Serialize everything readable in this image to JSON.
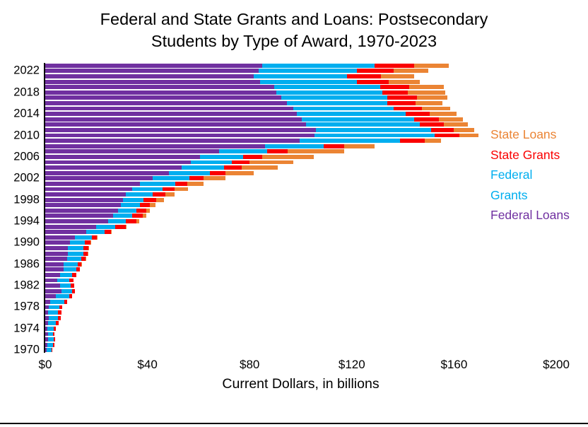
{
  "title": {
    "line1": "Federal and State Grants and Loans: Postsecondary",
    "line2": "Students by Type of Award, 1970-2023"
  },
  "chart_data": {
    "type": "bar",
    "orientation": "horizontal",
    "stacked": true,
    "title": "Federal and State Grants and Loans: Postsecondary Students by Type of Award, 1970-2023",
    "xlabel": "Current Dollars, in billions",
    "ylabel": "",
    "xlim": [
      0,
      200
    ],
    "x_ticks": [
      "$0",
      "$40",
      "$80",
      "$120",
      "$160",
      "$200"
    ],
    "x_tick_values": [
      0,
      40,
      80,
      120,
      160,
      200
    ],
    "y_tick_labels": [
      "2022",
      "2018",
      "2014",
      "2010",
      "2006",
      "2002",
      "1998",
      "1994",
      "1990",
      "1986",
      "1982",
      "1978",
      "1974",
      "1970"
    ],
    "grid": false,
    "legend_position": "right",
    "units": "billions of current dollars",
    "years": [
      1970,
      1971,
      1972,
      1973,
      1974,
      1975,
      1976,
      1977,
      1978,
      1979,
      1980,
      1981,
      1982,
      1983,
      1984,
      1985,
      1986,
      1987,
      1988,
      1989,
      1990,
      1991,
      1992,
      1993,
      1994,
      1995,
      1996,
      1997,
      1998,
      1999,
      2000,
      2001,
      2002,
      2003,
      2004,
      2005,
      2006,
      2007,
      2008,
      2009,
      2010,
      2011,
      2012,
      2013,
      2014,
      2015,
      2016,
      2017,
      2018,
      2019,
      2020,
      2021,
      2022,
      2023
    ],
    "series": [
      {
        "name": "Federal Loans",
        "color": "#7030A0",
        "values": [
          0.5,
          0.9,
          1.2,
          1.0,
          0.7,
          1.0,
          1.4,
          1.2,
          1.5,
          2.0,
          4.1,
          6.3,
          5.8,
          4.7,
          5.8,
          7.2,
          7.2,
          8.6,
          8.9,
          8.8,
          9.7,
          11.5,
          16.0,
          20.0,
          24.5,
          26.5,
          28.5,
          29.5,
          30.5,
          31.5,
          34.0,
          37.0,
          42.0,
          48.5,
          53.5,
          57.0,
          60.5,
          68.0,
          86.0,
          99.5,
          105.5,
          106.0,
          102.0,
          100.5,
          98.5,
          97.0,
          94.5,
          92.5,
          90.5,
          89.5,
          84.0,
          81.5,
          83.5,
          85.0
        ]
      },
      {
        "name": "Federal Grants",
        "color": "#00AEEF",
        "values": [
          1.9,
          2.1,
          2.1,
          2.1,
          2.5,
          3.1,
          3.7,
          3.9,
          4.1,
          5.5,
          5.4,
          4.1,
          4.2,
          4.8,
          4.6,
          5.1,
          5.5,
          5.5,
          6.1,
          6.1,
          5.8,
          6.8,
          7.2,
          7.4,
          7.0,
          7.5,
          7.2,
          7.6,
          8.0,
          10.5,
          12.0,
          14.0,
          14.5,
          16.0,
          16.5,
          16.0,
          17.0,
          19.0,
          23.0,
          39.5,
          47.0,
          45.0,
          44.5,
          44.0,
          42.5,
          39.5,
          39.5,
          41.5,
          41.5,
          41.5,
          38.0,
          36.5,
          38.5,
          44.0
        ]
      },
      {
        "name": "State Grants",
        "color": "#FA0000",
        "values": [
          0.4,
          0.5,
          0.7,
          0.6,
          0.9,
          1.2,
          0.9,
          1.2,
          1.1,
          1.0,
          1.0,
          1.1,
          1.3,
          1.6,
          1.9,
          1.3,
          1.4,
          1.7,
          1.5,
          2.0,
          2.2,
          2.0,
          2.5,
          4.1,
          4.2,
          4.2,
          3.9,
          3.9,
          5.0,
          5.0,
          4.5,
          4.5,
          5.5,
          6.0,
          7.0,
          7.0,
          7.5,
          8.0,
          8.0,
          9.5,
          9.5,
          9.0,
          9.5,
          9.5,
          9.5,
          11.0,
          11.0,
          11.5,
          10.0,
          11.5,
          12.5,
          13.5,
          14.5,
          15.5
        ]
      },
      {
        "name": "State Loans",
        "color": "#EB8434",
        "values": [
          0,
          0,
          0,
          0,
          0,
          0,
          0,
          0,
          0,
          0,
          0,
          0,
          0,
          0,
          0,
          0,
          0.1,
          0.1,
          0.1,
          0.1,
          0.2,
          0.3,
          0.3,
          0.4,
          1.1,
          1.4,
          1.3,
          2.2,
          3.0,
          3.5,
          5.5,
          6.5,
          8.5,
          11.0,
          14.0,
          17.0,
          20.0,
          22.0,
          12.0,
          6.5,
          7.5,
          8.0,
          9.5,
          9.5,
          10.5,
          11.0,
          10.5,
          12.0,
          14.5,
          13.5,
          12.0,
          13.0,
          13.5,
          13.5
        ]
      }
    ],
    "legend": [
      {
        "label": "State Loans",
        "color": "#EB8434"
      },
      {
        "label": "State Grants",
        "color": "#FA0000"
      },
      {
        "label": "Federal Grants",
        "color": "#00AEEF"
      },
      {
        "label": "Federal Loans",
        "color": "#7030A0"
      }
    ]
  }
}
